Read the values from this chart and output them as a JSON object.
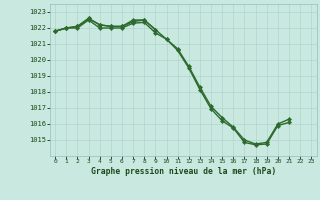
{
  "title": "Graphe pression niveau de la mer (hPa)",
  "x_hours": [
    0,
    1,
    2,
    3,
    4,
    5,
    6,
    7,
    8,
    9,
    10,
    11,
    12,
    13,
    14,
    15,
    16,
    17,
    18,
    19,
    20,
    21,
    22,
    23
  ],
  "s1_y": [
    1021.8,
    1022.0,
    1022.1,
    1022.6,
    1022.2,
    1022.1,
    1022.1,
    1022.5,
    1022.5,
    1021.9,
    1021.3,
    1020.7,
    1019.6,
    1018.3,
    1017.1,
    1016.4,
    1015.8,
    1015.0,
    1014.75,
    1014.85,
    1016.0,
    1016.3,
    null,
    null
  ],
  "s2_y": [
    1021.8,
    1022.0,
    1022.1,
    1022.6,
    1022.2,
    1022.1,
    1022.1,
    1022.4,
    1022.5,
    1021.9,
    null,
    null,
    null,
    null,
    null,
    null,
    null,
    null,
    null,
    null,
    null,
    null,
    null,
    null
  ],
  "s3_y": [
    1021.8,
    1022.0,
    1022.0,
    1022.5,
    1022.0,
    1022.0,
    1022.0,
    1022.3,
    1022.35,
    1021.7,
    1021.3,
    1020.6,
    1019.5,
    1018.15,
    1016.95,
    1016.2,
    1015.75,
    1014.85,
    1014.7,
    1014.75,
    1015.9,
    1016.1,
    null,
    null
  ],
  "ylim": [
    1014.0,
    1023.5
  ],
  "yticks": [
    1015,
    1016,
    1017,
    1018,
    1019,
    1020,
    1021,
    1022,
    1023
  ],
  "line_color": "#2d6a2d",
  "bg_color": "#c8e8e0",
  "grid_major_color": "#b0d4cc",
  "grid_minor_color": "#c0dcd6",
  "label_color": "#1a4a1a",
  "marker": "D",
  "markersize": 2.2,
  "linewidth": 1.0
}
